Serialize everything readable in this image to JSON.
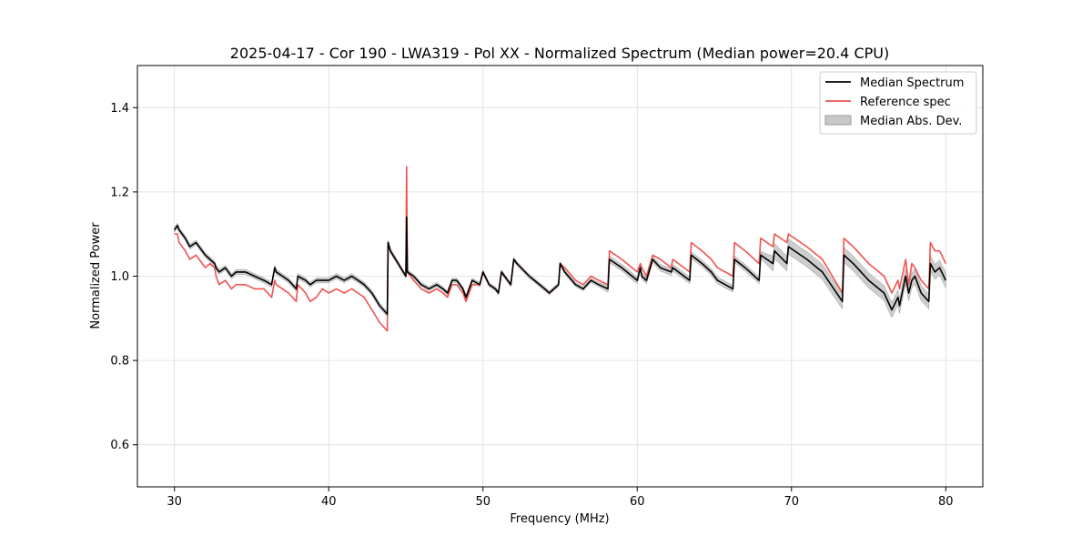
{
  "chart_data": {
    "type": "line",
    "title": "2025-04-17 - Cor 190 - LWA319 - Pol XX - Normalized Spectrum (Median power=20.4 CPU)",
    "xlabel": "Frequency (MHz)",
    "ylabel": "Normalized Power",
    "xlim": [
      27.6,
      82.4
    ],
    "ylim": [
      0.5,
      1.5
    ],
    "xticks": [
      30,
      40,
      50,
      60,
      70,
      80
    ],
    "yticks": [
      0.6,
      0.8,
      1.0,
      1.2,
      1.4
    ],
    "xtick_labels": [
      "30",
      "40",
      "50",
      "60",
      "70",
      "80"
    ],
    "ytick_labels": [
      "0.6",
      "0.8",
      "1.0",
      "1.2",
      "1.4"
    ],
    "grid": true,
    "legend_position": "top-right",
    "legend": [
      "Median Spectrum",
      "Reference spec",
      "Median Abs. Dev."
    ],
    "colors": {
      "median": "#000000",
      "reference": "#ef5350",
      "mad_fill": "#c8c8c8",
      "mad_edge": "#999999"
    },
    "series": [
      {
        "name": "Median Spectrum",
        "x": [
          30.0,
          30.2,
          30.3,
          30.5,
          30.7,
          31.0,
          31.4,
          31.8,
          32.0,
          32.3,
          32.6,
          32.7,
          32.9,
          33.3,
          33.7,
          34.0,
          34.6,
          35.2,
          35.8,
          36.3,
          36.5,
          36.6,
          37.0,
          37.4,
          37.9,
          38.0,
          38.5,
          38.8,
          39.2,
          39.6,
          40.0,
          40.5,
          41.0,
          41.5,
          41.9,
          42.3,
          42.8,
          43.3,
          43.8,
          43.85,
          44.0,
          44.5,
          45.0,
          45.05,
          45.1,
          45.5,
          46.0,
          46.5,
          47.0,
          47.4,
          47.7,
          48.0,
          48.3,
          48.7,
          48.9,
          49.3,
          49.8,
          50.0,
          50.4,
          50.8,
          51.0,
          51.2,
          51.8,
          52.0,
          52.2,
          53.0,
          54.0,
          54.3,
          54.9,
          55.0,
          55.3,
          56.0,
          56.5,
          57.0,
          57.5,
          58.1,
          58.2,
          59.0,
          60.0,
          60.2,
          60.3,
          60.6,
          61.0,
          61.5,
          62.2,
          62.3,
          63.4,
          63.5,
          64.2,
          64.8,
          65.2,
          66.2,
          66.3,
          67.0,
          67.9,
          68.0,
          68.8,
          68.9,
          69.7,
          69.8,
          71.0,
          72.0,
          73.3,
          73.4,
          74.0,
          75.0,
          76.0,
          76.5,
          76.9,
          77.0,
          77.4,
          77.6,
          77.8,
          78.0,
          78.4,
          78.9,
          79.0,
          79.3,
          79.6,
          80.0
        ],
        "values": [
          1.11,
          1.12,
          1.11,
          1.1,
          1.09,
          1.07,
          1.08,
          1.06,
          1.05,
          1.04,
          1.03,
          1.02,
          1.01,
          1.02,
          1.0,
          1.01,
          1.01,
          1.0,
          0.99,
          0.98,
          1.02,
          1.01,
          1.0,
          0.99,
          0.97,
          1.0,
          0.99,
          0.98,
          0.99,
          0.99,
          0.99,
          1.0,
          0.99,
          1.0,
          0.99,
          0.98,
          0.96,
          0.93,
          0.91,
          1.08,
          1.06,
          1.03,
          1.0,
          1.14,
          1.01,
          1.0,
          0.98,
          0.97,
          0.98,
          0.97,
          0.96,
          0.99,
          0.99,
          0.97,
          0.95,
          0.99,
          0.98,
          1.01,
          0.98,
          0.97,
          0.96,
          1.01,
          0.98,
          1.04,
          1.03,
          1.0,
          0.97,
          0.96,
          0.98,
          1.03,
          1.01,
          0.98,
          0.97,
          0.99,
          0.98,
          0.97,
          1.04,
          1.02,
          0.99,
          1.02,
          1.0,
          0.99,
          1.04,
          1.02,
          1.01,
          1.02,
          0.99,
          1.05,
          1.03,
          1.01,
          0.99,
          0.97,
          1.04,
          1.02,
          0.99,
          1.05,
          1.03,
          1.06,
          1.03,
          1.07,
          1.04,
          1.01,
          0.94,
          1.05,
          1.03,
          0.99,
          0.96,
          0.92,
          0.95,
          0.93,
          1.0,
          0.96,
          0.99,
          1.0,
          0.96,
          0.94,
          1.03,
          1.01,
          1.02,
          0.99
        ]
      },
      {
        "name": "Reference spec",
        "x": [
          30.0,
          30.2,
          30.3,
          30.5,
          30.7,
          31.0,
          31.4,
          31.8,
          32.0,
          32.3,
          32.6,
          32.7,
          32.9,
          33.3,
          33.7,
          34.0,
          34.6,
          35.2,
          35.8,
          36.3,
          36.5,
          36.6,
          37.0,
          37.4,
          37.9,
          38.0,
          38.5,
          38.8,
          39.2,
          39.6,
          40.0,
          40.5,
          41.0,
          41.5,
          41.9,
          42.3,
          42.8,
          43.3,
          43.8,
          43.85,
          44.0,
          44.5,
          45.0,
          45.05,
          45.1,
          45.5,
          46.0,
          46.5,
          47.0,
          47.4,
          47.7,
          48.0,
          48.3,
          48.7,
          48.9,
          49.3,
          49.8,
          50.0,
          50.4,
          50.8,
          51.0,
          51.2,
          51.8,
          52.0,
          52.2,
          53.0,
          54.0,
          54.3,
          54.9,
          55.0,
          55.3,
          56.0,
          56.5,
          57.0,
          57.5,
          58.1,
          58.2,
          59.0,
          60.0,
          60.2,
          60.3,
          60.6,
          61.0,
          61.5,
          62.2,
          62.3,
          63.4,
          63.5,
          64.2,
          64.8,
          65.2,
          66.2,
          66.3,
          67.0,
          67.9,
          68.0,
          68.8,
          68.9,
          69.7,
          69.8,
          71.0,
          72.0,
          73.3,
          73.4,
          74.0,
          75.0,
          76.0,
          76.5,
          76.9,
          77.0,
          77.4,
          77.6,
          77.8,
          78.0,
          78.4,
          78.9,
          79.0,
          79.3,
          79.6,
          80.0
        ],
        "values": [
          1.1,
          1.1,
          1.08,
          1.07,
          1.06,
          1.04,
          1.05,
          1.03,
          1.02,
          1.03,
          1.02,
          1.0,
          0.98,
          0.99,
          0.97,
          0.98,
          0.98,
          0.97,
          0.97,
          0.95,
          0.99,
          0.98,
          0.97,
          0.96,
          0.94,
          0.98,
          0.96,
          0.94,
          0.95,
          0.97,
          0.96,
          0.97,
          0.96,
          0.97,
          0.96,
          0.95,
          0.92,
          0.89,
          0.87,
          1.08,
          1.06,
          1.03,
          1.0,
          1.26,
          1.01,
          0.99,
          0.97,
          0.96,
          0.97,
          0.96,
          0.95,
          0.98,
          0.98,
          0.96,
          0.94,
          0.98,
          0.98,
          1.01,
          0.98,
          0.97,
          0.96,
          1.01,
          0.98,
          1.04,
          1.03,
          1.0,
          0.97,
          0.96,
          0.98,
          1.03,
          1.02,
          0.99,
          0.98,
          1.0,
          0.99,
          0.98,
          1.06,
          1.04,
          1.01,
          1.03,
          1.02,
          1.0,
          1.05,
          1.04,
          1.02,
          1.04,
          1.01,
          1.08,
          1.06,
          1.04,
          1.02,
          1.0,
          1.08,
          1.06,
          1.03,
          1.09,
          1.07,
          1.1,
          1.08,
          1.1,
          1.07,
          1.04,
          0.96,
          1.09,
          1.07,
          1.03,
          1.0,
          0.96,
          0.99,
          0.97,
          1.04,
          0.98,
          1.03,
          1.02,
          0.99,
          0.97,
          1.08,
          1.06,
          1.06,
          1.03
        ]
      }
    ],
    "mad_band": {
      "name": "Median Abs. Dev.",
      "halfwidth_by_frequency": [
        {
          "from": 30,
          "to": 44,
          "halfwidth": 0.006
        },
        {
          "from": 44,
          "to": 58,
          "halfwidth": 0.005
        },
        {
          "from": 58,
          "to": 68,
          "halfwidth": 0.008
        },
        {
          "from": 68,
          "to": 80,
          "halfwidth": 0.018
        }
      ]
    }
  }
}
